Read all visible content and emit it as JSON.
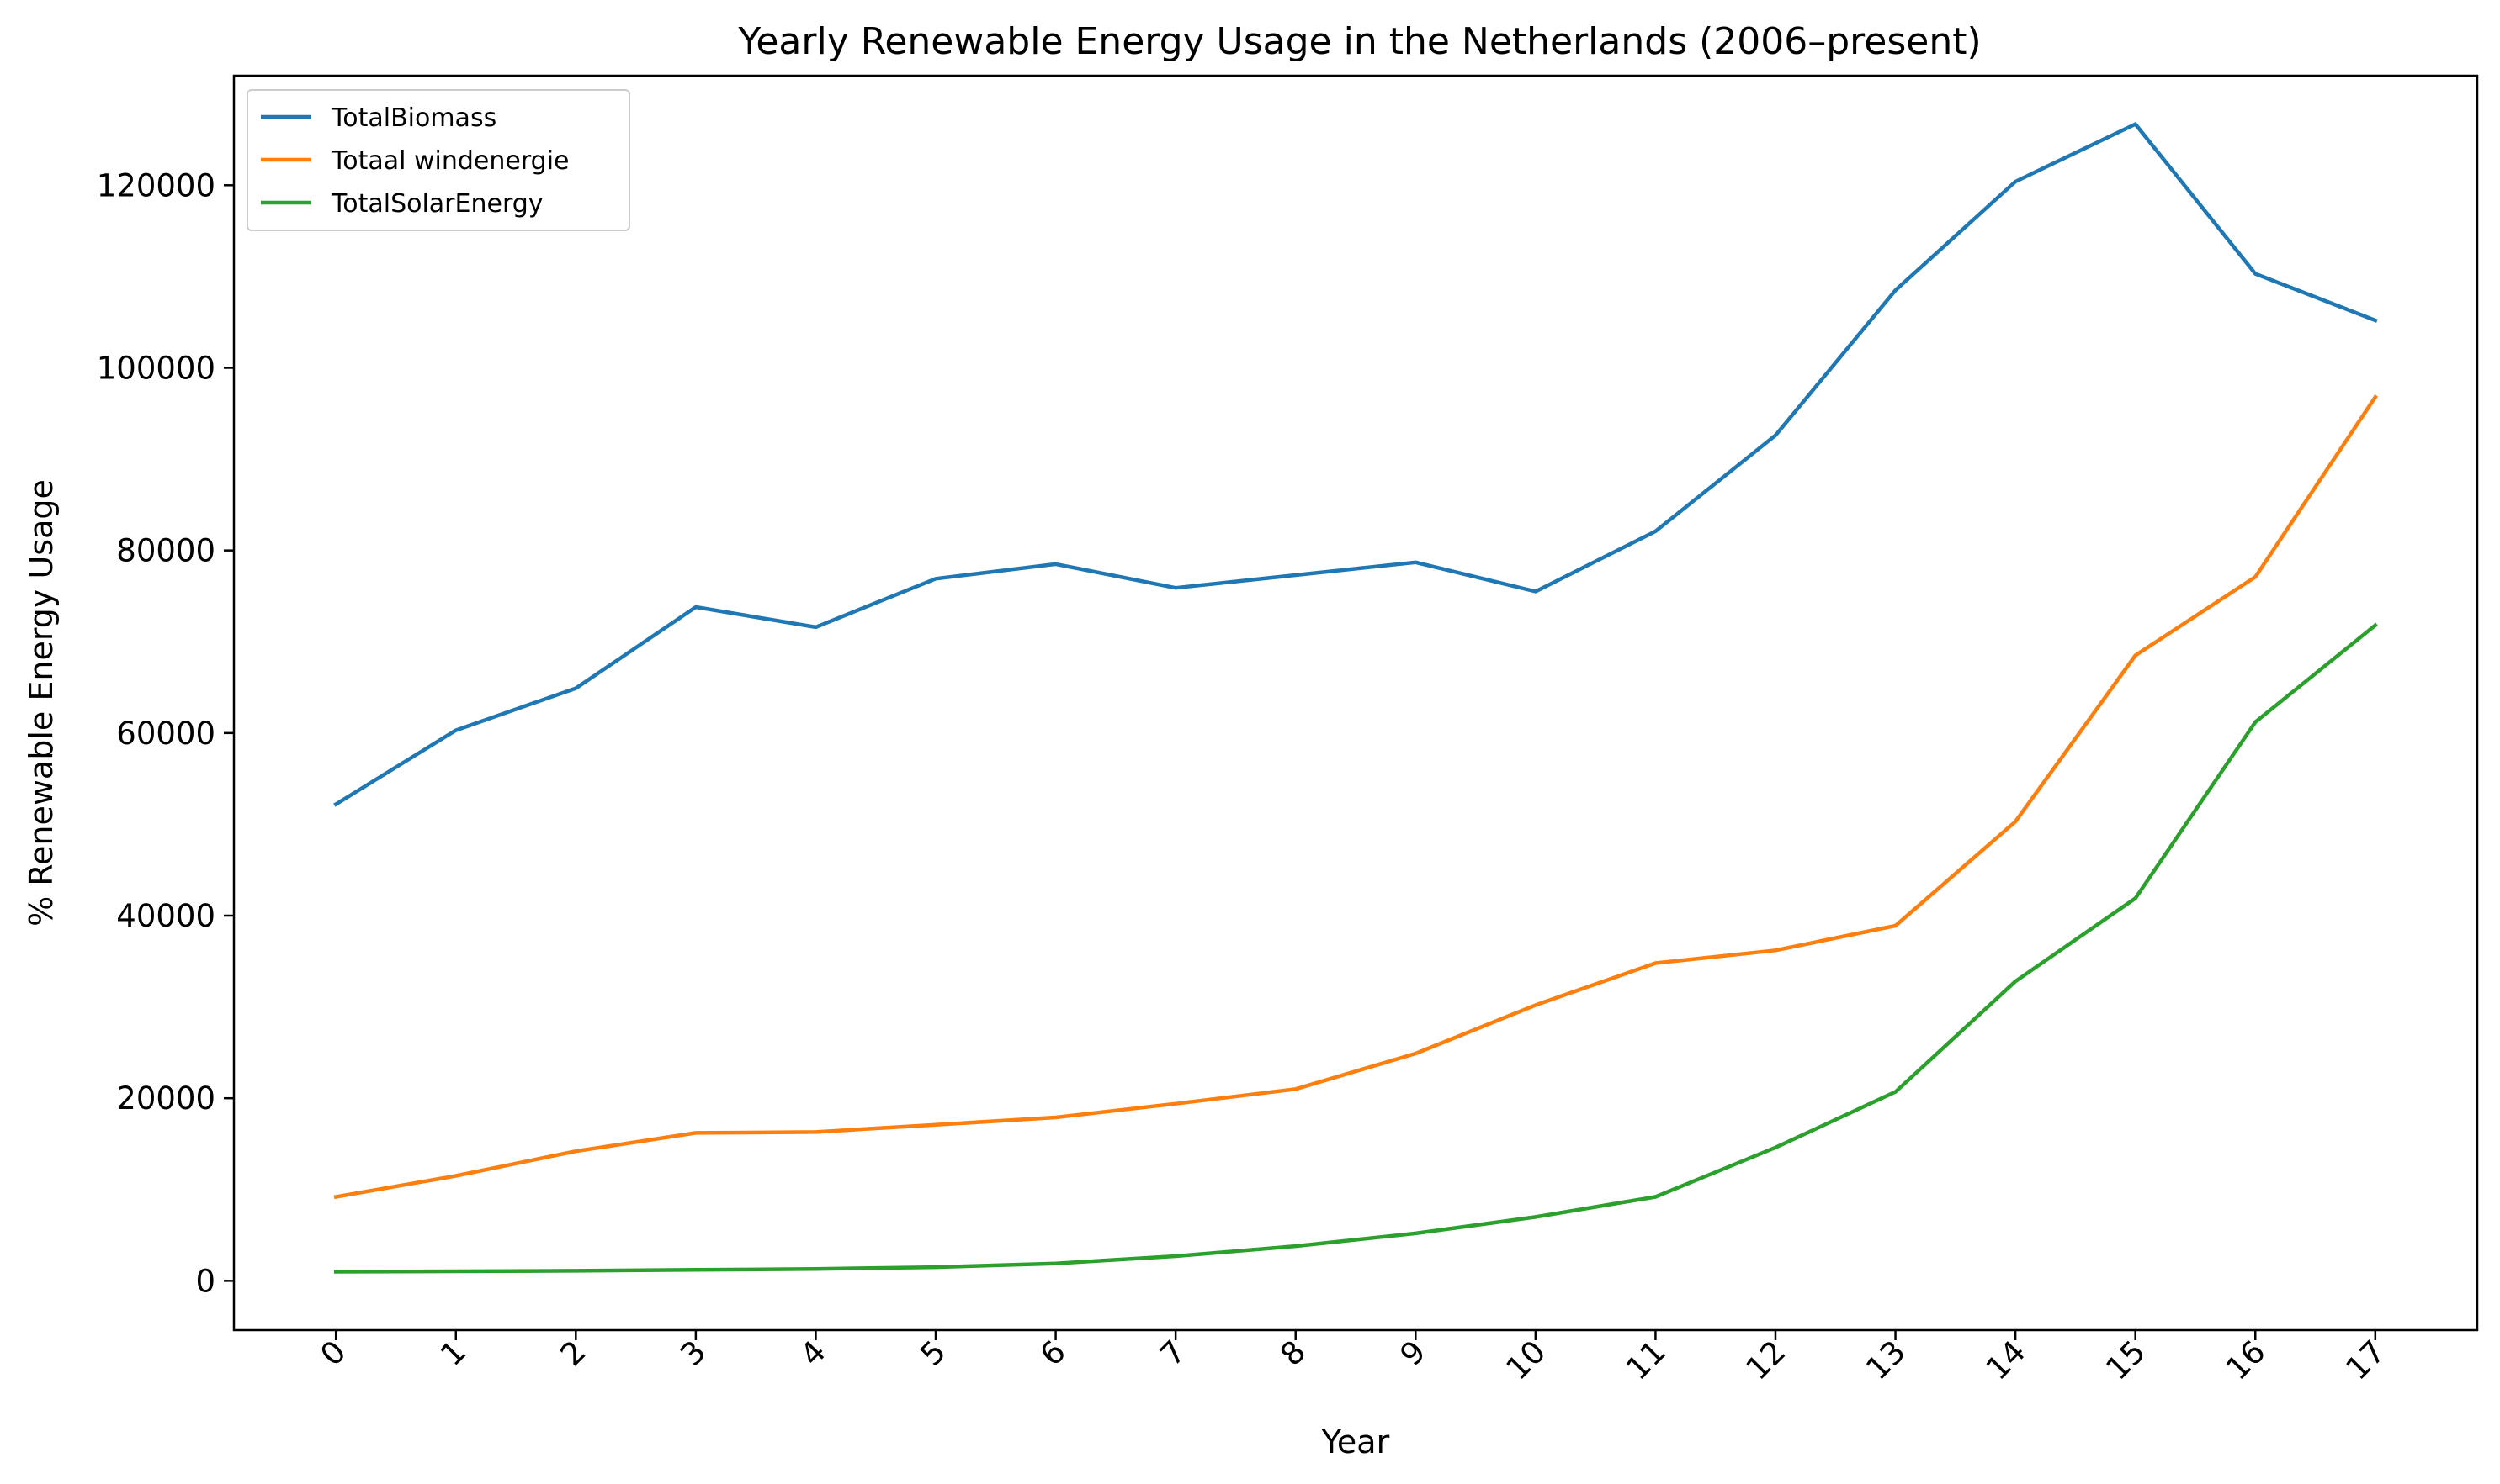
{
  "chart_data": {
    "type": "line",
    "title": "Yearly Renewable Energy Usage in the Netherlands (2006–present)",
    "xlabel": "Year",
    "ylabel": "% Renewable Energy Usage",
    "x": [
      0,
      1,
      2,
      3,
      4,
      5,
      6,
      7,
      8,
      9,
      10,
      11,
      12,
      13,
      14,
      15,
      16,
      17
    ],
    "xticks": [
      "0",
      "1",
      "2",
      "3",
      "4",
      "5",
      "6",
      "7",
      "8",
      "9",
      "10",
      "11",
      "12",
      "13",
      "14",
      "15",
      "16",
      "17"
    ],
    "yticks": [
      0,
      20000,
      40000,
      60000,
      80000,
      100000,
      120000
    ],
    "ylim": [
      -5400,
      132000
    ],
    "xlim": [
      -0.85,
      17.85
    ],
    "grid": false,
    "legend_position": "top-left",
    "series": [
      {
        "name": "TotalBiomass",
        "color": "#1f77b4",
        "values": [
          52200,
          60300,
          64900,
          73800,
          71600,
          76900,
          78500,
          75900,
          77300,
          78700,
          75500,
          82100,
          92600,
          108500,
          120400,
          126700,
          110300,
          105200
        ]
      },
      {
        "name": "Totaal windenergie",
        "color": "#ff7f0e",
        "values": [
          9200,
          11500,
          14200,
          16200,
          16300,
          17100,
          17900,
          19400,
          21000,
          24900,
          30200,
          34800,
          36200,
          38900,
          50300,
          68500,
          77100,
          96800
        ]
      },
      {
        "name": "TotalSolarEnergy",
        "color": "#2ca02c",
        "values": [
          1000,
          1050,
          1100,
          1200,
          1300,
          1500,
          1900,
          2700,
          3800,
          5200,
          7000,
          9200,
          14600,
          20700,
          32800,
          41900,
          61200,
          71800
        ]
      }
    ]
  }
}
